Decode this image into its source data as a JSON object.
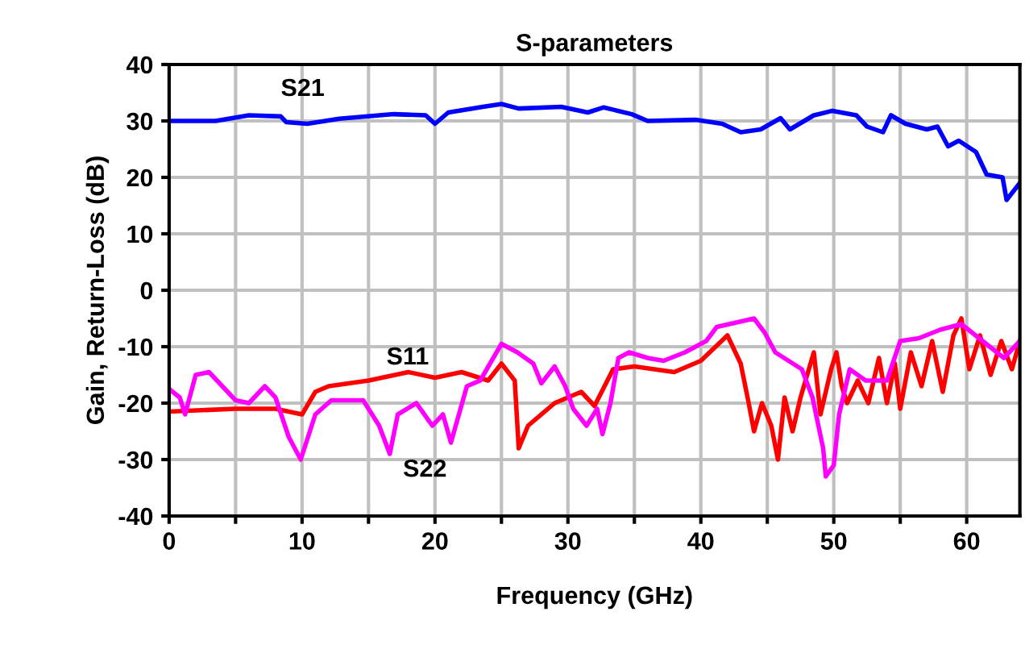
{
  "chart_data": {
    "type": "line",
    "title": "S-parameters",
    "xlabel": "Frequency (GHz)",
    "ylabel": "Gain, Return-Loss (dB)",
    "xlim": [
      0,
      64
    ],
    "ylim": [
      -40,
      40
    ],
    "xticks": [
      0,
      {
        "value": 5,
        "label": null
      },
      10,
      {
        "value": 15,
        "label": null
      },
      20,
      {
        "value": 25,
        "label": null
      },
      30,
      {
        "value": 35,
        "label": null
      },
      40,
      {
        "value": 45,
        "label": null
      },
      50,
      {
        "value": 55,
        "label": null
      },
      60
    ],
    "yticks": [
      -40,
      -30,
      -20,
      -10,
      0,
      10,
      20,
      30,
      40
    ],
    "grid": true,
    "legend": false,
    "marker": "none",
    "line_style": "solid",
    "series": [
      {
        "name": "S21",
        "color": "#0000ff",
        "x": [
          0,
          3.5,
          6,
          8.4,
          8.8,
          10.4,
          12.8,
          16.9,
          19.3,
          20,
          21,
          23.6,
          25,
          26.3,
          29.5,
          31.5,
          32.7,
          34.8,
          36,
          39.6,
          41.6,
          43,
          44.5,
          46,
          46.7,
          48.5,
          49.9,
          51.7,
          52.5,
          53.7,
          54.3,
          55.4,
          57,
          57.8,
          58.6,
          59.4,
          60.7,
          61.5,
          62.7,
          63,
          64
        ],
        "values": [
          30,
          30,
          31,
          30.8,
          29.8,
          29.5,
          30.4,
          31.2,
          31,
          29.5,
          31.5,
          32.5,
          33,
          32.2,
          32.5,
          31.5,
          32.4,
          31.2,
          30,
          30.2,
          29.5,
          28,
          28.5,
          30.5,
          28.5,
          31,
          31.8,
          31,
          29,
          28,
          31,
          29.5,
          28.5,
          29,
          25.5,
          26.5,
          24.5,
          20.5,
          20,
          16,
          19
        ]
      },
      {
        "name": "S11",
        "color": "#ff0000",
        "x": [
          0,
          5,
          8,
          10,
          11,
          12,
          15,
          18,
          20,
          22,
          24,
          25,
          26,
          26.3,
          27,
          29,
          31,
          32,
          33.4,
          35,
          38,
          40,
          42,
          43,
          43.6,
          44,
          44.6,
          45.3,
          45.8,
          46.3,
          46.9,
          47.5,
          48.5,
          49,
          49.8,
          50.2,
          50.6,
          51,
          51.8,
          52.6,
          53.4,
          54,
          54.6,
          55,
          55.8,
          56.6,
          57.4,
          58.2,
          59,
          59.6,
          60.2,
          61,
          61.8,
          62.6,
          63.4,
          64
        ],
        "values": [
          -21.5,
          -21,
          -21,
          -22,
          -18,
          -17,
          -16,
          -14.5,
          -15.5,
          -14.5,
          -16,
          -13,
          -16,
          -28,
          -24,
          -20,
          -18,
          -20.5,
          -14,
          -13.5,
          -14.5,
          -12.5,
          -8,
          -13,
          -20,
          -25,
          -20,
          -24,
          -30,
          -19,
          -25,
          -19,
          -11,
          -22,
          -14,
          -11,
          -17,
          -20,
          -16,
          -20,
          -12,
          -20,
          -13,
          -21,
          -11,
          -17,
          -9,
          -18,
          -8,
          -5,
          -14,
          -8,
          -15,
          -9,
          -14,
          -9
        ]
      },
      {
        "name": "S22",
        "color": "#ff00ff",
        "x": [
          0,
          0.8,
          1.2,
          2,
          3,
          5,
          6,
          7.2,
          8,
          9,
          9.9,
          11,
          12.2,
          14.6,
          15.8,
          16.6,
          17.2,
          18.6,
          19.8,
          20.6,
          21.2,
          22.4,
          23.4,
          25,
          26.2,
          27.4,
          28,
          29,
          29.8,
          30.4,
          31.4,
          32.2,
          32.6,
          33.2,
          33.8,
          34.6,
          36,
          37.2,
          38.8,
          40.4,
          41.2,
          44,
          44.8,
          45.6,
          47.6,
          48.4,
          49.2,
          49.4,
          50,
          50.4,
          51.2,
          52.4,
          54,
          55,
          56.4,
          58,
          59.6,
          61.2,
          62.8,
          64
        ],
        "values": [
          -17.5,
          -19,
          -22,
          -15,
          -14.5,
          -19.5,
          -20,
          -17,
          -19,
          -26,
          -30,
          -22,
          -19.5,
          -19.5,
          -24,
          -29,
          -22,
          -20,
          -24,
          -22,
          -27,
          -17,
          -16,
          -9.5,
          -11,
          -13,
          -16.5,
          -13.5,
          -17,
          -21,
          -24,
          -21,
          -25.5,
          -20,
          -12,
          -11,
          -12,
          -12.5,
          -11,
          -9,
          -6.5,
          -5,
          -7.5,
          -11,
          -14,
          -19,
          -28,
          -33,
          -31,
          -22,
          -14,
          -16,
          -16,
          -9,
          -8.5,
          -7,
          -6,
          -9,
          -12,
          -9
        ]
      }
    ]
  }
}
